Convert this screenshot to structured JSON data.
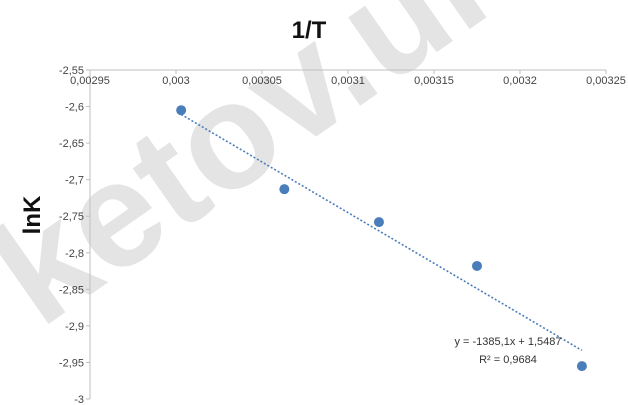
{
  "chart_data": {
    "type": "scatter",
    "title": "1/T",
    "xlabel": "1/T",
    "ylabel": "lnK",
    "xlim": [
      0.00295,
      0.00325
    ],
    "ylim": [
      -3,
      -2.55
    ],
    "x_ticks": [
      "0,00295",
      "0,003",
      "0,00305",
      "0,0031",
      "0,00315",
      "0,0032",
      "0,00325"
    ],
    "y_ticks": [
      "-2,55",
      "-2,6",
      "-2,65",
      "-2,7",
      "-2,75",
      "-2,8",
      "-2,85",
      "-2,9",
      "-2,95",
      "-3"
    ],
    "x_axis_position": "top",
    "grid": false,
    "legend": "none",
    "marker_color": "#4a7ebb",
    "trendline_color": "#4a7ebb",
    "series": [
      {
        "x": [
          0.003003,
          0.003063,
          0.003118,
          0.003175,
          0.003236
        ],
        "y": [
          -2.605,
          -2.713,
          -2.758,
          -2.818,
          -2.955
        ]
      }
    ],
    "trendline": {
      "type": "linear",
      "slope": -1385.1,
      "intercept": 1.5487,
      "equation": "y = -1385,1x + 1,5487",
      "r_squared": "R² = 0,9684"
    },
    "watermark_text": "ketov.uni"
  }
}
